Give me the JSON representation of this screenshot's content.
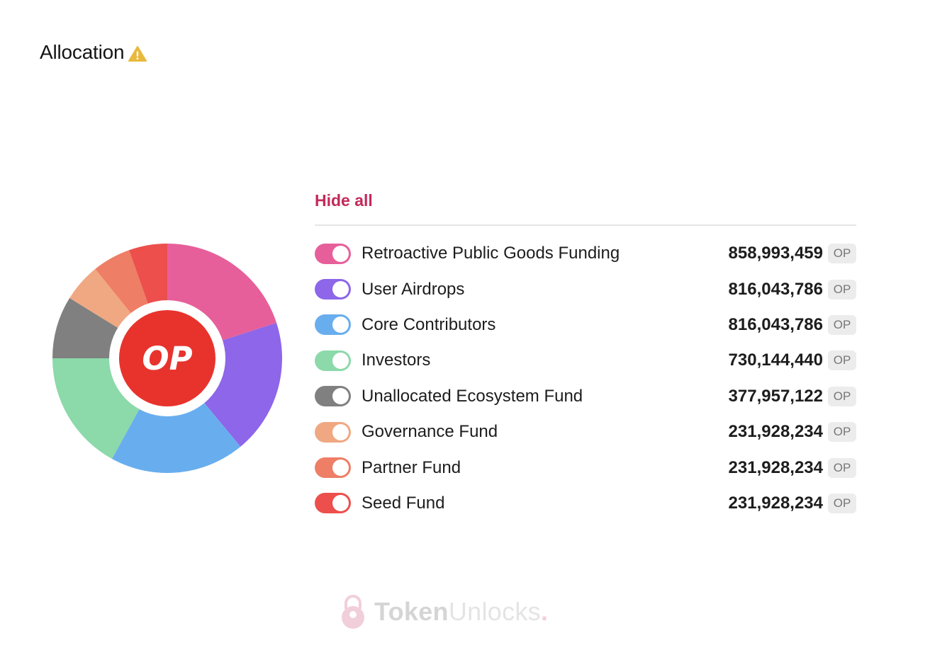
{
  "header": {
    "title": "Allocation",
    "warning_icon": "warning-icon"
  },
  "legend": {
    "hide_all_label": "Hide all"
  },
  "watermark": {
    "brand_primary": "Token",
    "brand_secondary": "Unlocks",
    "brand_dot": "."
  },
  "chart_data": {
    "type": "pie",
    "variant": "donut",
    "center_label": "OP",
    "center_color": "#e8332d",
    "unit": "OP",
    "slices": [
      {
        "label": "Retroactive Public Goods Funding",
        "value": 858993459,
        "display": "858,993,459",
        "color": "#e75f9a"
      },
      {
        "label": "User Airdrops",
        "value": 816043786,
        "display": "816,043,786",
        "color": "#8d66e9"
      },
      {
        "label": "Core Contributors",
        "value": 816043786,
        "display": "816,043,786",
        "color": "#68aeee"
      },
      {
        "label": "Investors",
        "value": 730144440,
        "display": "730,144,440",
        "color": "#8cd9aa"
      },
      {
        "label": "Unallocated Ecosystem Fund",
        "value": 377957122,
        "display": "377,957,122",
        "color": "#808080"
      },
      {
        "label": "Governance Fund",
        "value": 231928234,
        "display": "231,928,234",
        "color": "#f0a882"
      },
      {
        "label": "Partner Fund",
        "value": 231928234,
        "display": "231,928,234",
        "color": "#ee7e66"
      },
      {
        "label": "Seed Fund",
        "value": 231928234,
        "display": "231,928,234",
        "color": "#ec4f4c"
      }
    ]
  }
}
